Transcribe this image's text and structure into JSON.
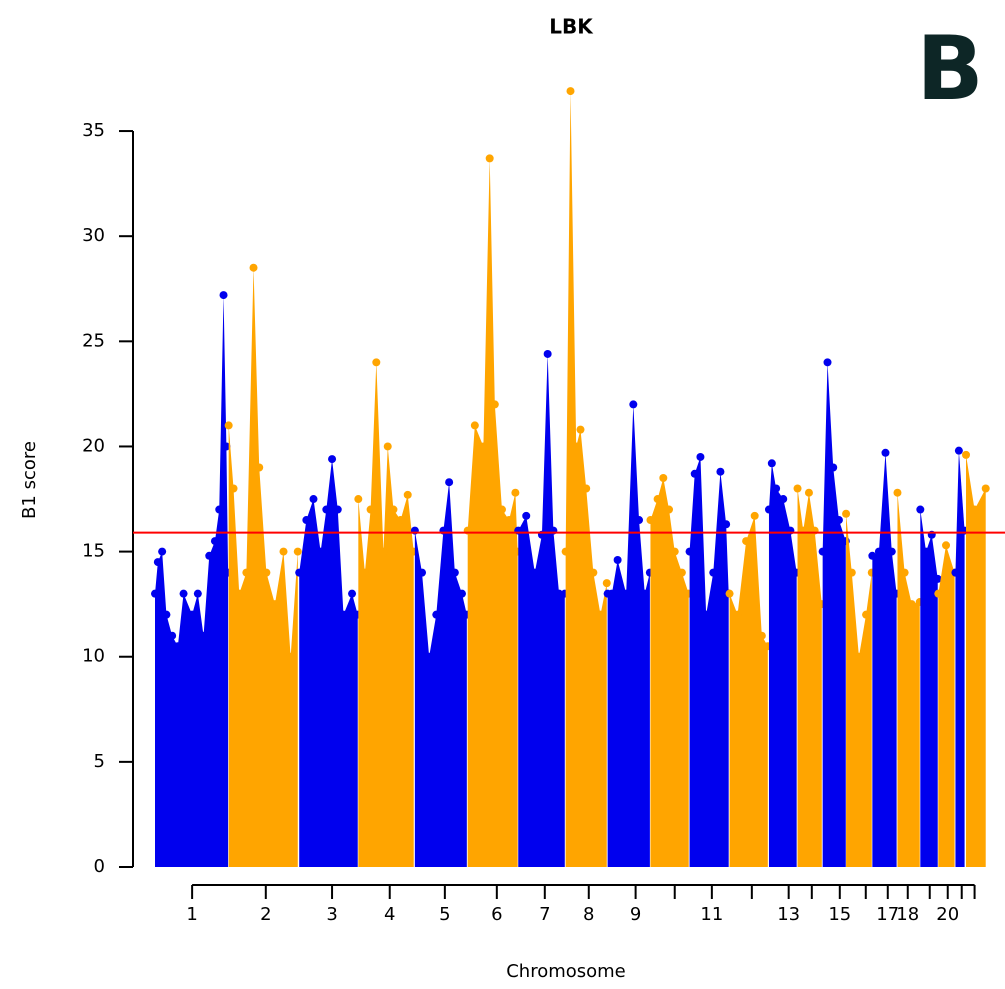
{
  "chart_data": {
    "type": "manhattan",
    "title": "LBK",
    "panel_label": "B",
    "x_label": "Chromosome",
    "y_label": "B1 score",
    "ylim": [
      0,
      37
    ],
    "yticks": [
      0,
      5,
      10,
      15,
      20,
      25,
      30,
      35
    ],
    "xlim": [
      0,
      2910
    ],
    "categories": [
      "1",
      "2",
      "3",
      "4",
      "5",
      "6",
      "7",
      "8",
      "9",
      null,
      "11",
      null,
      "13",
      null,
      "15",
      null,
      "17",
      "18",
      null,
      "20",
      null,
      null
    ],
    "xticks": [
      130,
      388,
      620,
      822,
      1015,
      1197,
      1365,
      1519,
      1683,
      1820,
      1950,
      2090,
      2219,
      2300,
      2398,
      2489,
      2566,
      2636,
      2713,
      2776,
      2825,
      2870
    ],
    "threshold": 15.9,
    "threshold_color": "#ff0000",
    "series": [
      {
        "color": "#0000ee",
        "x": [
          0,
          10,
          25,
          40,
          60,
          80,
          100,
          130,
          150,
          170,
          190,
          210,
          225,
          240,
          250,
          256
        ],
        "values": [
          13,
          14.5,
          15,
          12,
          11,
          10.5,
          13,
          12,
          13,
          11,
          14.8,
          15.5,
          17,
          27.2,
          20,
          14
        ]
      },
      {
        "color": "#ffa500",
        "x": [
          258,
          275,
          295,
          320,
          345,
          365,
          390,
          420,
          450,
          475,
          500
        ],
        "values": [
          21,
          18,
          13,
          14,
          28.5,
          19,
          14,
          12.5,
          15,
          10,
          15
        ]
      },
      {
        "color": "#0000ee",
        "x": [
          505,
          530,
          555,
          580,
          600,
          620,
          640,
          660,
          690,
          710
        ],
        "values": [
          14,
          16.5,
          17.5,
          15,
          17,
          19.4,
          17,
          12,
          13,
          12
        ]
      },
      {
        "color": "#ffa500",
        "x": [
          712,
          735,
          755,
          775,
          800,
          815,
          835,
          860,
          885,
          906
        ],
        "values": [
          17.5,
          14,
          17,
          24,
          15,
          20,
          17,
          16.5,
          17.7,
          15
        ]
      },
      {
        "color": "#0000ee",
        "x": [
          910,
          935,
          960,
          985,
          1010,
          1030,
          1050,
          1075,
          1092
        ],
        "values": [
          16,
          14,
          10,
          12,
          16,
          18.3,
          14,
          13,
          12
        ]
      },
      {
        "color": "#ffa500",
        "x": [
          1095,
          1120,
          1150,
          1172,
          1190,
          1215,
          1240,
          1262,
          1270
        ],
        "values": [
          16,
          21,
          20,
          33.7,
          22,
          17,
          16.5,
          17.8,
          15
        ]
      },
      {
        "color": "#0000ee",
        "x": [
          1272,
          1300,
          1330,
          1355,
          1375,
          1395,
          1415,
          1435
        ],
        "values": [
          16,
          16.7,
          14,
          15.8,
          24.4,
          16,
          13,
          13
        ]
      },
      {
        "color": "#ffa500",
        "x": [
          1438,
          1455,
          1475,
          1490,
          1510,
          1535,
          1560,
          1582
        ],
        "values": [
          15,
          36.9,
          20,
          20.8,
          18,
          14,
          12,
          13.5
        ]
      },
      {
        "color": "#0000ee",
        "x": [
          1585,
          1600,
          1620,
          1650,
          1675,
          1695,
          1715,
          1733
        ],
        "values": [
          13,
          13,
          14.6,
          13,
          22,
          16.5,
          13,
          14
        ]
      },
      {
        "color": "#ffa500",
        "x": [
          1735,
          1760,
          1780,
          1800,
          1820,
          1845,
          1869
        ],
        "values": [
          16.5,
          17.5,
          18.5,
          17,
          15,
          14,
          13
        ]
      },
      {
        "color": "#0000ee",
        "x": [
          1872,
          1890,
          1910,
          1930,
          1955,
          1980,
          2000,
          2009
        ],
        "values": [
          15,
          18.7,
          19.5,
          12,
          14,
          18.8,
          16.3,
          13
        ]
      },
      {
        "color": "#ffa500",
        "x": [
          2012,
          2040,
          2070,
          2100,
          2125,
          2146
        ],
        "values": [
          13,
          12,
          15.5,
          16.7,
          11,
          10.5
        ]
      },
      {
        "color": "#0000ee",
        "x": [
          2150,
          2160,
          2175,
          2200,
          2225,
          2247
        ],
        "values": [
          17,
          19.2,
          18,
          17.5,
          16,
          14
        ]
      },
      {
        "color": "#ffa500",
        "x": [
          2250,
          2270,
          2290,
          2310,
          2335
        ],
        "values": [
          18,
          16,
          17.8,
          16,
          12.5
        ]
      },
      {
        "color": "#0000ee",
        "x": [
          2338,
          2355,
          2375,
          2395,
          2419
        ],
        "values": [
          15,
          24,
          19,
          16.5,
          15.5
        ]
      },
      {
        "color": "#ffa500",
        "x": [
          2420,
          2440,
          2465,
          2490,
          2510
        ],
        "values": [
          16.8,
          14,
          10,
          12,
          14
        ]
      },
      {
        "color": "#0000ee",
        "x": [
          2512,
          2535,
          2558,
          2580,
          2597
        ],
        "values": [
          14.8,
          15,
          19.7,
          15,
          13
        ]
      },
      {
        "color": "#ffa500",
        "x": [
          2600,
          2625,
          2650,
          2678
        ],
        "values": [
          17.8,
          14,
          12.5,
          12.6
        ]
      },
      {
        "color": "#0000ee",
        "x": [
          2680,
          2700,
          2720,
          2741
        ],
        "values": [
          17,
          15,
          15.8,
          13.7
        ]
      },
      {
        "color": "#ffa500",
        "x": [
          2743,
          2770,
          2800
        ],
        "values": [
          13,
          15.3,
          14
        ]
      },
      {
        "color": "#0000ee",
        "x": [
          2803,
          2815,
          2835
        ],
        "values": [
          14,
          19.8,
          16
        ]
      },
      {
        "color": "#ffa500",
        "x": [
          2840,
          2870,
          2909
        ],
        "values": [
          19.6,
          17,
          18
        ]
      }
    ]
  }
}
